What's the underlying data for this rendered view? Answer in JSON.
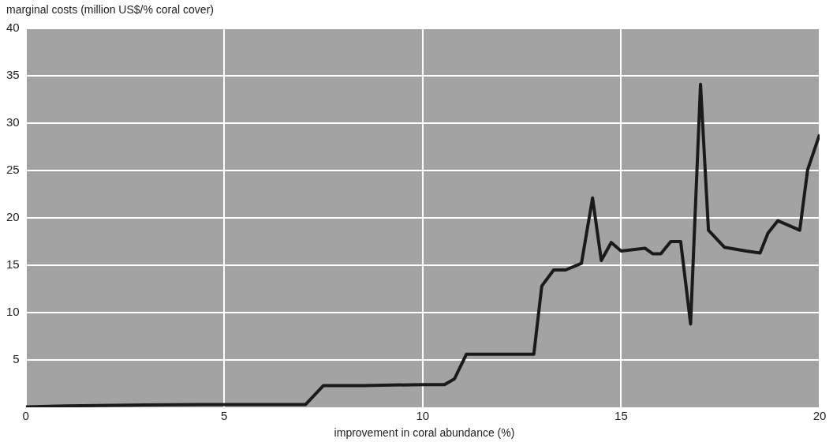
{
  "chart_data": {
    "type": "line",
    "ylabel": "marginal costs (million US$/% coral cover)",
    "xlabel": "improvement in coral abundance (%)",
    "x": [
      0,
      1,
      3,
      5,
      7.05,
      7.5,
      8.5,
      10,
      10.55,
      10.8,
      11.1,
      12.8,
      13.0,
      13.3,
      13.6,
      14.0,
      14.28,
      14.5,
      14.75,
      15.0,
      15.6,
      15.8,
      16.0,
      16.25,
      16.5,
      16.75,
      17.0,
      17.2,
      17.6,
      18.15,
      18.5,
      18.7,
      18.95,
      19.5,
      19.7,
      20
    ],
    "series": [
      {
        "color": "#1a1a1a",
        "values": [
          0.05,
          0.15,
          0.25,
          0.3,
          0.3,
          2.3,
          2.3,
          2.4,
          2.4,
          3.0,
          5.6,
          5.6,
          12.8,
          14.5,
          14.5,
          15.2,
          22.1,
          15.5,
          17.4,
          16.5,
          16.8,
          16.2,
          16.2,
          17.5,
          17.5,
          8.8,
          34.1,
          18.7,
          16.9,
          16.5,
          16.3,
          18.4,
          19.7,
          18.7,
          25.1,
          28.8
        ]
      }
    ],
    "xlim": [
      0,
      20
    ],
    "xticks": [
      0,
      5,
      10,
      15,
      20
    ],
    "ylim": [
      0,
      40
    ],
    "yticks": [
      5,
      10,
      15,
      20,
      25,
      30,
      35,
      40
    ],
    "grid": true,
    "legend": false,
    "marker": "none",
    "line_style": "solid"
  }
}
